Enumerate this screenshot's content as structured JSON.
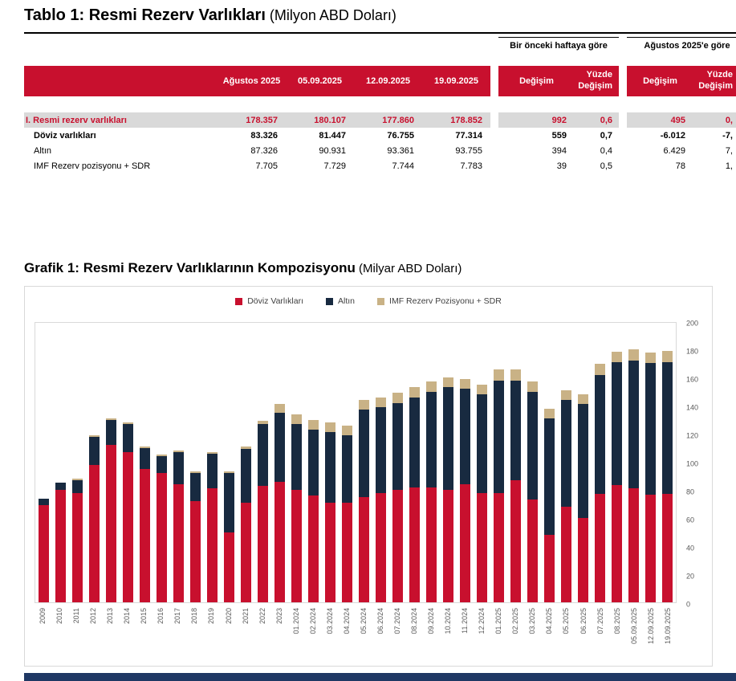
{
  "table": {
    "title": "Tablo 1: Resmi Rezerv Varlıkları",
    "subtitle": " (Milyon ABD Doları)",
    "group_headers": [
      "Bir önceki haftaya göre",
      "Ağustos 2025'e göre"
    ],
    "date_columns": [
      "Ağustos 2025",
      "05.09.2025",
      "12.09.2025",
      "19.09.2025"
    ],
    "change_label": "Değişim",
    "pct_label": "Yüzde Değişim",
    "rows": [
      {
        "label": "I. Resmi rezerv varlıkları",
        "values": [
          "178.357",
          "180.107",
          "177.860",
          "178.852"
        ],
        "week_change": "992",
        "week_pct": "0,6",
        "aug_change": "495",
        "aug_pct": "0,",
        "style": "total"
      },
      {
        "label": "Döviz varlıkları",
        "values": [
          "83.326",
          "81.447",
          "76.755",
          "77.314"
        ],
        "week_change": "559",
        "week_pct": "0,7",
        "aug_change": "-6.012",
        "aug_pct": "-7,",
        "style": "boldrow"
      },
      {
        "label": "Altın",
        "values": [
          "87.326",
          "90.931",
          "93.361",
          "93.755"
        ],
        "week_change": "394",
        "week_pct": "0,4",
        "aug_change": "6.429",
        "aug_pct": "7,",
        "style": "normalrow"
      },
      {
        "label": "IMF Rezerv pozisyonu + SDR",
        "values": [
          "7.705",
          "7.729",
          "7.744",
          "7.783"
        ],
        "week_change": "39",
        "week_pct": "0,5",
        "aug_change": "78",
        "aug_pct": "1,",
        "style": "normalrow"
      }
    ]
  },
  "chart": {
    "title": "Grafik 1: Resmi Rezerv Varlıklarının Kompozisyonu",
    "subtitle": " (Milyar ABD Doları)"
  },
  "chart_data": {
    "type": "bar",
    "stacked": true,
    "title": "Grafik 1: Resmi Rezerv Varlıklarının Kompozisyonu (Milyar ABD Doları)",
    "legend_position": "top",
    "y_axis_side": "right",
    "grid": false,
    "ylim": [
      0,
      200
    ],
    "yticks": [
      0,
      20,
      40,
      60,
      80,
      100,
      120,
      140,
      160,
      180,
      200
    ],
    "categories": [
      "2009",
      "2010",
      "2011",
      "2012",
      "2013",
      "2014",
      "2015",
      "2016",
      "2017",
      "2018",
      "2019",
      "2020",
      "2021",
      "2022",
      "2023",
      "01.2024",
      "02.2024",
      "03.2024",
      "04.2024",
      "05.2024",
      "06.2024",
      "07.2024",
      "08.2024",
      "09.2024",
      "10.2024",
      "11.2024",
      "12.2024",
      "01.2025",
      "02.2025",
      "03.2025",
      "04.2025",
      "05.2025",
      "06.2025",
      "07.2025",
      "08.2025",
      "05.09.2025",
      "12.09.2025",
      "19.09.2025"
    ],
    "series": [
      {
        "name": "Döviz Varlıkları",
        "color": "#c8102e",
        "values": [
          69,
          80,
          78,
          98,
          112,
          107,
          95,
          92,
          84,
          72,
          81,
          50,
          71,
          83,
          86,
          80,
          76,
          71,
          71,
          75,
          78,
          80,
          82,
          82,
          80,
          84,
          78,
          78,
          87,
          73,
          48,
          68,
          60,
          77,
          83.3,
          81.4,
          76.8,
          77.3
        ]
      },
      {
        "name": "Altın",
        "color": "#182a40",
        "values": [
          5,
          5,
          9,
          20,
          18,
          20,
          15,
          12,
          23,
          20,
          25,
          42,
          38,
          44,
          49,
          47,
          47,
          50,
          48,
          62,
          61,
          62,
          64,
          68,
          73,
          68,
          70,
          80,
          71,
          77,
          83,
          76,
          81,
          85,
          87.3,
          90.9,
          93.4,
          93.8
        ]
      },
      {
        "name": "IMF Rezerv Pozisyonu + SDR",
        "color": "#c9b286",
        "values": [
          0,
          0,
          1,
          1,
          1,
          1,
          1,
          1,
          1,
          1,
          1,
          1,
          2,
          2,
          6,
          7,
          7,
          7,
          7,
          7,
          7,
          7,
          7,
          7,
          7,
          7,
          7,
          8,
          8,
          7,
          7,
          7,
          7,
          8,
          7.7,
          7.7,
          7.7,
          7.8
        ]
      }
    ]
  },
  "colors": {
    "accent_red": "#c8102e",
    "bar_navy": "#182a40",
    "bar_tan": "#c9b286",
    "highlight_row_bg": "#d9d9d9",
    "footer_bar": "#1f3864",
    "axis_text": "#595959",
    "chart_border": "#d9d9d9"
  }
}
